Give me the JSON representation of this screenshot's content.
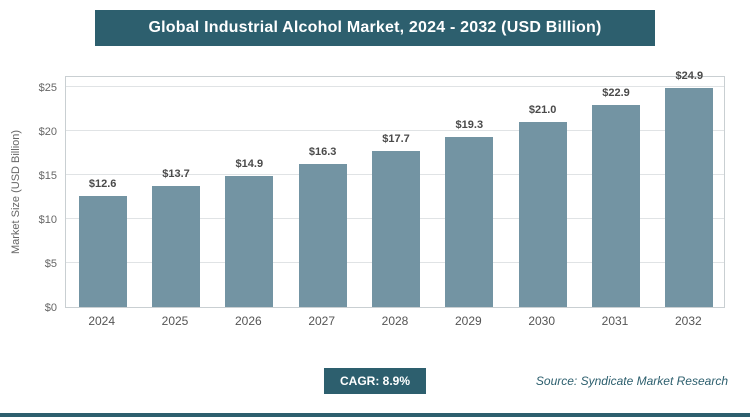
{
  "header": {
    "title": "Global Industrial Alcohol Market, 2024 - 2032 (USD Billion)"
  },
  "chart_data": {
    "type": "bar",
    "title": "Global Industrial Alcohol Market, 2024 - 2032 (USD Billion)",
    "categories": [
      "2024",
      "2025",
      "2026",
      "2027",
      "2028",
      "2029",
      "2030",
      "2031",
      "2032"
    ],
    "values": [
      12.6,
      13.7,
      14.9,
      16.3,
      17.7,
      19.3,
      21.0,
      22.9,
      24.9
    ],
    "value_labels": [
      "$12.6",
      "$13.7",
      "$14.9",
      "$16.3",
      "$17.7",
      "$19.3",
      "$21.0",
      "$22.9",
      "$24.9"
    ],
    "xlabel": "",
    "ylabel": "Market Size (USD Billion)",
    "ylim": [
      0,
      25
    ],
    "ytick_values": [
      0,
      5,
      10,
      15,
      20,
      25
    ],
    "yticks": [
      "$0",
      "$5",
      "$10",
      "$15",
      "$20",
      "$25"
    ],
    "grid": true,
    "legend": "none",
    "bar_color": "#7394A3"
  },
  "footer": {
    "cagr_label": "CAGR: 8.9%",
    "source": "Source: Syndicate Market Research"
  },
  "colors": {
    "accent": "#2D5F6E",
    "bar": "#7394A3",
    "gridline": "#E0E3E5"
  }
}
